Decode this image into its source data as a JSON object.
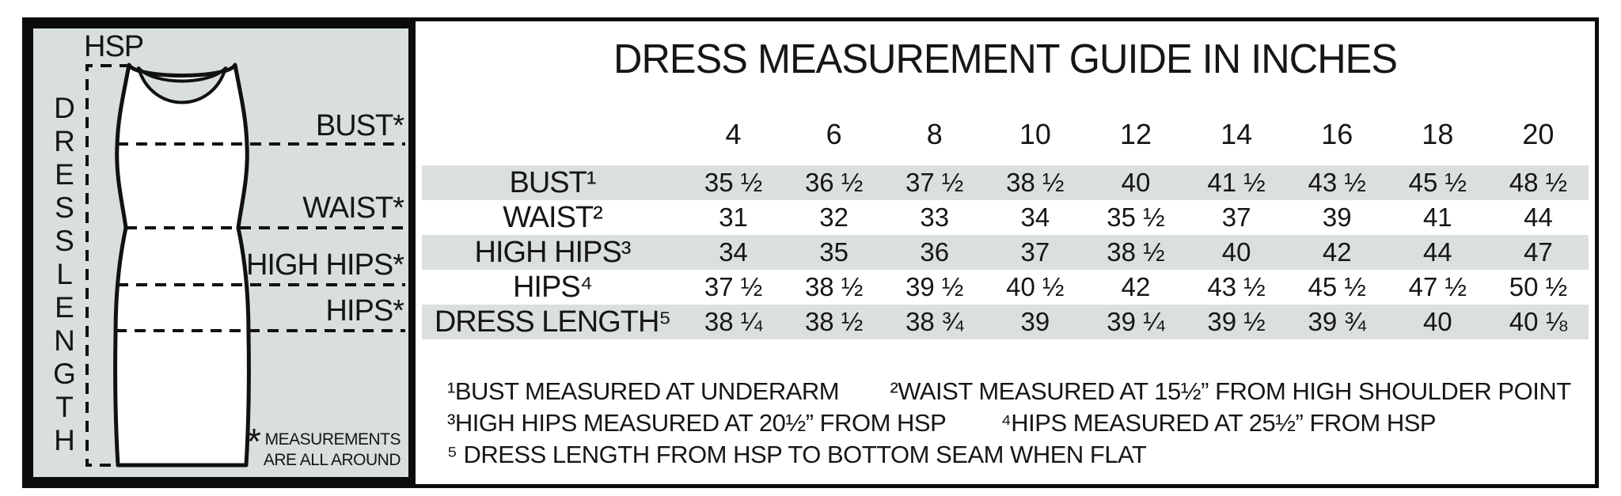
{
  "colors": {
    "panel_bg": "#d9dfdb",
    "row_stripe": "#dbe0dd",
    "border": "#0c0c0c",
    "text": "#161616"
  },
  "diagram": {
    "hsp_label": "HSP",
    "vertical_label": "D\nR\nE\nS\nS\nL\nE\nN\nG\nT\nH",
    "line_labels": [
      "BUST*",
      "WAIST*",
      "HIGH HIPS*",
      "HIPS*"
    ],
    "note_star": "*",
    "note_text": "MEASUREMENTS\nARE ALL AROUND"
  },
  "chart_data": {
    "type": "table",
    "title": "DRESS MEASUREMENT GUIDE IN INCHES",
    "columns": [
      "4",
      "6",
      "8",
      "10",
      "12",
      "14",
      "16",
      "18",
      "20"
    ],
    "rows": [
      {
        "label": "BUST¹",
        "values": [
          "35 ½",
          "36 ½",
          "37 ½",
          "38 ½",
          "40",
          "41 ½",
          "43 ½",
          "45 ½",
          "48 ½"
        ]
      },
      {
        "label": "WAIST²",
        "values": [
          "31",
          "32",
          "33",
          "34",
          "35 ½",
          "37",
          "39",
          "41",
          "44"
        ]
      },
      {
        "label": "HIGH HIPS³",
        "values": [
          "34",
          "35",
          "36",
          "37",
          "38 ½",
          "40",
          "42",
          "44",
          "47"
        ]
      },
      {
        "label": "HIPS⁴",
        "values": [
          "37 ½",
          "38 ½",
          "39 ½",
          "40 ½",
          "42",
          "43 ½",
          "45 ½",
          "47 ½",
          "50 ½"
        ]
      },
      {
        "label": "DRESS LENGTH⁵",
        "values": [
          "38 ¼",
          "38 ½",
          "38 ¾",
          "39",
          "39 ¼",
          "39 ½",
          "39 ¾",
          "40",
          "40 ⅛"
        ]
      }
    ],
    "footnotes": [
      "¹BUST MEASURED AT UNDERARM",
      "²WAIST MEASURED AT 15½” FROM HIGH SHOULDER POINT",
      "³HIGH HIPS MEASURED AT 20½” FROM HSP",
      "⁴HIPS MEASURED AT 25½” FROM HSP",
      "⁵ DRESS LENGTH FROM HSP TO BOTTOM SEAM WHEN FLAT"
    ]
  }
}
